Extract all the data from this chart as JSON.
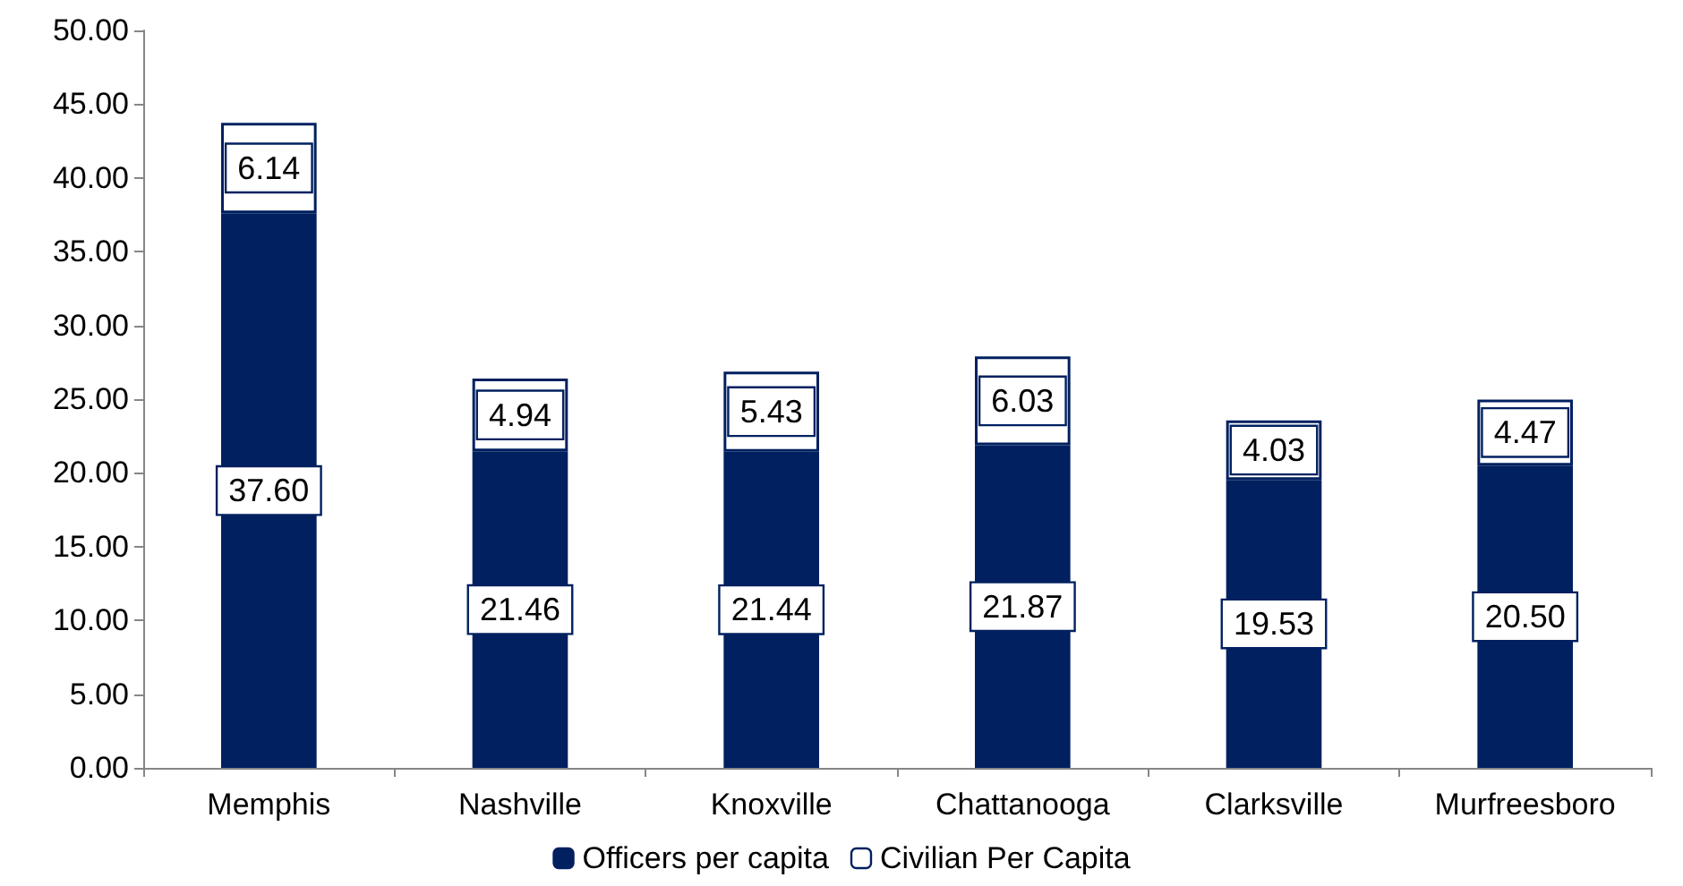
{
  "chart_data": {
    "type": "bar",
    "stacked": true,
    "categories": [
      "Memphis",
      "Nashville",
      "Knoxville",
      "Chattanooga",
      "Clarksville",
      "Murfreesboro"
    ],
    "series": [
      {
        "name": "Officers per capita",
        "color": "#002060",
        "values": [
          37.6,
          21.46,
          21.44,
          21.87,
          19.53,
          20.5
        ],
        "value_labels": [
          "37.60",
          "21.46",
          "21.44",
          "21.87",
          "19.53",
          "20.50"
        ]
      },
      {
        "name": "Civilian Per Capita",
        "color": "#ffffff",
        "values": [
          6.14,
          4.94,
          5.43,
          6.03,
          4.03,
          4.47
        ],
        "value_labels": [
          "6.14",
          "4.94",
          "5.43",
          "6.03",
          "4.03",
          "4.47"
        ]
      }
    ],
    "ylim": [
      0,
      50
    ],
    "yticks": [
      {
        "value": 0,
        "label": "0.00"
      },
      {
        "value": 5,
        "label": "5.00"
      },
      {
        "value": 10,
        "label": "10.00"
      },
      {
        "value": 15,
        "label": "15.00"
      },
      {
        "value": 20,
        "label": "20.00"
      },
      {
        "value": 25,
        "label": "25.00"
      },
      {
        "value": 30,
        "label": "30.00"
      },
      {
        "value": 35,
        "label": "35.00"
      },
      {
        "value": 40,
        "label": "40.00"
      },
      {
        "value": 45,
        "label": "45.00"
      },
      {
        "value": 50,
        "label": "50.00"
      }
    ],
    "grid": false,
    "legend": "bottom"
  }
}
